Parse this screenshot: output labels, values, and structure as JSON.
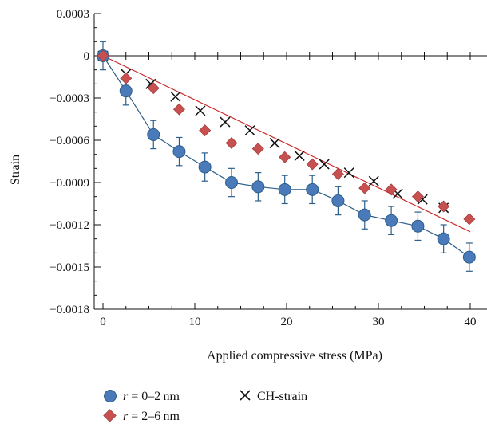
{
  "chart_data": {
    "type": "scatter",
    "xlabel": "Applied compressive stress (MPa)",
    "ylabel": "Strain",
    "xlim": [
      0,
      42
    ],
    "ylim": [
      -0.0018,
      0.0003
    ],
    "x_ticks": [
      0,
      10,
      20,
      30,
      40
    ],
    "x_tick_labels": [
      "0",
      "10",
      "20",
      "30",
      "40"
    ],
    "y_ticks": [
      0.0003,
      0,
      -0.0003,
      -0.0006,
      -0.0009,
      -0.0012,
      -0.0015,
      -0.0018
    ],
    "y_tick_labels": [
      "0.0003",
      "0",
      "−0.0003",
      "−0.0006",
      "−0.0009",
      "−0.0012",
      "−0.0015",
      "−0.0018"
    ],
    "grid": false,
    "legend_position": "bottom",
    "series": [
      {
        "name_prefix": "r",
        "name_value": " = 0–2 nm",
        "marker": "circle",
        "color": "#4a7ab9",
        "line_color": "#2d5f8a",
        "connected_line": true,
        "x": [
          0,
          2.5,
          5.5,
          8.3,
          11.1,
          14,
          16.9,
          19.8,
          22.8,
          25.6,
          28.5,
          31.4,
          34.3,
          37.1,
          39.9
        ],
        "y": [
          0,
          -0.00025,
          -0.00056,
          -0.00068,
          -0.00079,
          -0.0009,
          -0.00093,
          -0.00095,
          -0.00095,
          -0.00103,
          -0.00113,
          -0.00117,
          -0.00121,
          -0.0013,
          -0.00143
        ],
        "error": [
          0.0001,
          0.0001,
          0.0001,
          0.0001,
          0.0001,
          0.0001,
          0.0001,
          0.0001,
          0.0001,
          0.0001,
          0.0001,
          0.0001,
          0.0001,
          0.0001,
          0.0001
        ]
      },
      {
        "name_prefix": "r",
        "name_value": " = 2–6 nm",
        "marker": "diamond",
        "color": "#c85050",
        "x": [
          0,
          2.5,
          5.5,
          8.3,
          11.1,
          14,
          16.9,
          19.8,
          22.8,
          25.6,
          28.5,
          31.4,
          34.3,
          37.1,
          39.9
        ],
        "y": [
          0,
          -0.00016,
          -0.00023,
          -0.00038,
          -0.00053,
          -0.00062,
          -0.00066,
          -0.00072,
          -0.00077,
          -0.00084,
          -0.00094,
          -0.00095,
          -0.001,
          -0.00107,
          -0.00116
        ]
      },
      {
        "name": "CH-strain",
        "marker": "x",
        "color": "#111111",
        "x": [
          0,
          2.5,
          5.2,
          7.9,
          10.6,
          13.3,
          16,
          18.7,
          21.4,
          24.1,
          26.8,
          29.5,
          32.1,
          34.8,
          37.1
        ],
        "y": [
          0,
          -0.00013,
          -0.0002,
          -0.00029,
          -0.00039,
          -0.00047,
          -0.00053,
          -0.00062,
          -0.00071,
          -0.00077,
          -0.00083,
          -0.00089,
          -0.00098,
          -0.00102,
          -0.00108
        ]
      }
    ],
    "fit_line": {
      "color": "#cc2b2b",
      "x": [
        0,
        40
      ],
      "y": [
        0,
        -0.00125
      ]
    }
  }
}
